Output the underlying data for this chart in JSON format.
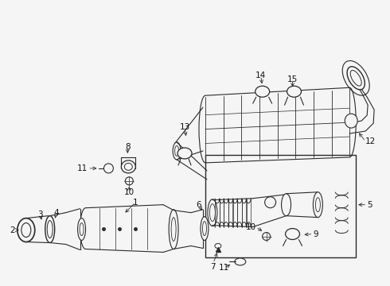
{
  "bg": "#f5f5f5",
  "lc": "#2a2a2a",
  "lw": 0.8,
  "figsize": [
    4.9,
    3.6
  ],
  "dpi": 100
}
